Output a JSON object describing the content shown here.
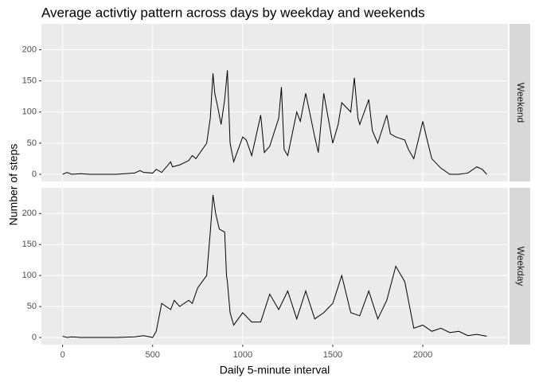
{
  "title": "Average activtiy pattern across days by weekday and weekends",
  "x_label": "Daily 5-minute interval",
  "y_label": "Number of steps",
  "chart_data": [
    {
      "type": "line",
      "facet": "Weekend",
      "color": "#000000",
      "grid": true,
      "x": [
        0,
        25,
        50,
        100,
        150,
        200,
        300,
        400,
        430,
        450,
        500,
        520,
        550,
        600,
        610,
        650,
        700,
        720,
        740,
        800,
        820,
        835,
        845,
        860,
        880,
        900,
        915,
        930,
        950,
        1000,
        1020,
        1050,
        1100,
        1120,
        1150,
        1200,
        1215,
        1230,
        1250,
        1300,
        1320,
        1350,
        1400,
        1420,
        1450,
        1500,
        1530,
        1550,
        1600,
        1620,
        1640,
        1650,
        1700,
        1720,
        1750,
        1800,
        1820,
        1850,
        1900,
        1920,
        1950,
        2000,
        2020,
        2050,
        2100,
        2150,
        2200,
        2250,
        2300,
        2330,
        2355
      ],
      "values": [
        0,
        3,
        0,
        1,
        0,
        0,
        0,
        2,
        6,
        3,
        2,
        8,
        3,
        20,
        12,
        15,
        22,
        30,
        25,
        50,
        90,
        162,
        130,
        110,
        80,
        120,
        167,
        50,
        20,
        60,
        55,
        30,
        95,
        35,
        45,
        90,
        140,
        40,
        30,
        100,
        85,
        130,
        60,
        35,
        130,
        50,
        80,
        115,
        100,
        155,
        90,
        80,
        120,
        70,
        50,
        95,
        65,
        60,
        55,
        40,
        25,
        85,
        60,
        25,
        10,
        0,
        0,
        2,
        12,
        8,
        0
      ],
      "xlim": [
        -117.75,
        2472.75
      ],
      "ylim": [
        -11.5,
        241.5
      ],
      "xticks": [
        0,
        500,
        1000,
        1500,
        2000
      ],
      "yticks": [
        0,
        50,
        100,
        150,
        200
      ]
    },
    {
      "type": "line",
      "facet": "Weekday",
      "color": "#000000",
      "grid": true,
      "x": [
        0,
        25,
        50,
        100,
        150,
        200,
        300,
        400,
        450,
        500,
        520,
        550,
        600,
        620,
        650,
        700,
        720,
        750,
        800,
        820,
        835,
        845,
        850,
        870,
        900,
        910,
        915,
        930,
        950,
        1000,
        1050,
        1100,
        1150,
        1200,
        1250,
        1300,
        1350,
        1400,
        1450,
        1500,
        1550,
        1600,
        1650,
        1700,
        1750,
        1800,
        1850,
        1900,
        1920,
        1950,
        2000,
        2050,
        2100,
        2150,
        2200,
        2250,
        2300,
        2355
      ],
      "values": [
        2,
        0,
        1,
        0,
        0,
        0,
        0,
        1,
        3,
        0,
        10,
        55,
        45,
        60,
        50,
        60,
        55,
        80,
        100,
        170,
        230,
        210,
        200,
        175,
        170,
        100,
        90,
        40,
        20,
        40,
        25,
        25,
        70,
        45,
        75,
        30,
        75,
        30,
        40,
        55,
        100,
        40,
        35,
        75,
        30,
        60,
        115,
        90,
        60,
        15,
        20,
        10,
        15,
        8,
        10,
        3,
        5,
        2
      ],
      "xlim": [
        -117.75,
        2472.75
      ],
      "ylim": [
        -11.5,
        241.5
      ],
      "xticks": [
        0,
        500,
        1000,
        1500,
        2000
      ],
      "yticks": [
        0,
        50,
        100,
        150,
        200
      ]
    }
  ]
}
